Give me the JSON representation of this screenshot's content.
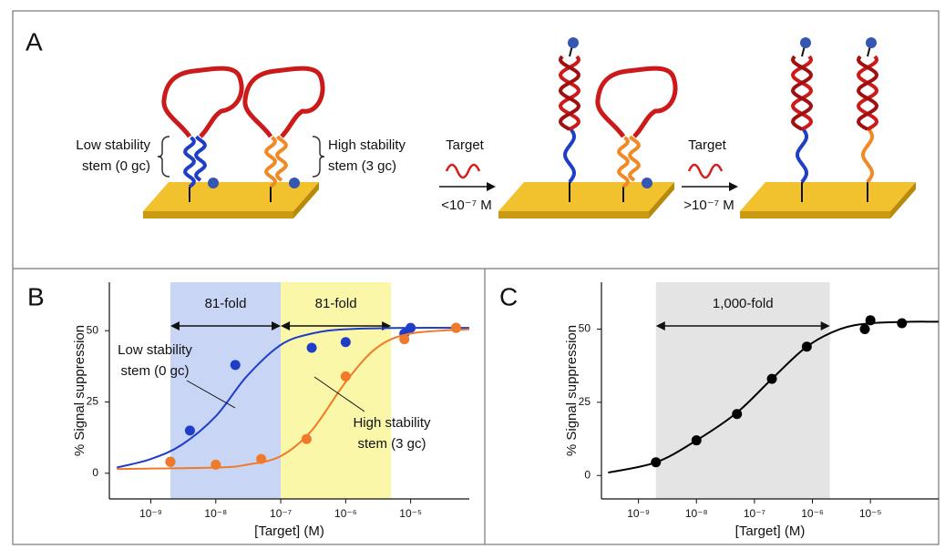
{
  "figure": {
    "panel_a": {
      "label": "A",
      "left_stem_label": [
        "Low stability",
        "stem (0 gc)"
      ],
      "right_stem_label": [
        "High stability",
        "stem (3 gc)"
      ],
      "step1": {
        "label": "Target",
        "condition": "<10⁻⁷ M"
      },
      "step2": {
        "label": "Target",
        "condition": ">10⁻⁷ M"
      }
    }
  },
  "chart_data": [
    {
      "type": "scatter",
      "panel_label": "B",
      "x_label": "[Target] (M)",
      "y_label": "% Signal suppression",
      "log_x": true,
      "xlim": [
        2.3e-10,
        8e-05
      ],
      "ylim": [
        -9,
        67
      ],
      "xticks": [
        {
          "value": 1e-09,
          "label": "10⁻⁹"
        },
        {
          "value": 1e-08,
          "label": "10⁻⁸"
        },
        {
          "value": 1e-07,
          "label": "10⁻⁷"
        },
        {
          "value": 1e-06,
          "label": "10⁻⁶"
        },
        {
          "value": 1e-05,
          "label": "10⁻⁵"
        }
      ],
      "yticks": [
        0,
        25,
        50
      ],
      "regions": [
        {
          "x_range": [
            2e-09,
            1e-07
          ],
          "color": "#c9d5f5",
          "label": "81-fold"
        },
        {
          "x_range": [
            1e-07,
            5e-06
          ],
          "color": "#fbf7a9",
          "label": "81-fold"
        }
      ],
      "series": [
        {
          "color": "#1e3ec8",
          "x": [
            2e-09,
            4e-09,
            2e-08,
            3e-07,
            1e-06,
            8e-06,
            1e-05,
            5e-05
          ],
          "values": [
            4,
            15,
            38,
            44,
            46,
            49,
            51,
            51
          ],
          "fit_x": [
            3e-10,
            1e-09,
            3e-09,
            1e-08,
            3e-08,
            1e-07,
            3e-07,
            1e-06,
            1e-05,
            8e-05
          ],
          "fit_values": [
            2,
            5,
            10,
            20,
            34,
            45,
            49,
            50.5,
            51,
            51
          ],
          "annotation": [
            "Low stability",
            "stem (0 gc)"
          ]
        },
        {
          "color": "#f07a2a",
          "x": [
            2e-09,
            1e-08,
            5e-08,
            2.5e-07,
            1e-06,
            8e-06,
            5e-05
          ],
          "values": [
            4,
            3,
            5,
            12,
            34,
            47,
            51
          ],
          "fit_x": [
            3e-10,
            1e-08,
            3e-08,
            1e-07,
            3e-07,
            1e-06,
            3e-06,
            1e-05,
            8e-05
          ],
          "fit_values": [
            1.5,
            2,
            3,
            6,
            15,
            32,
            44,
            49,
            50.5
          ],
          "annotation": [
            "High stability",
            "stem (3 gc)"
          ]
        }
      ]
    },
    {
      "type": "scatter",
      "panel_label": "C",
      "x_label": "[Target] (M)",
      "y_label": "% Signal suppression",
      "log_x": true,
      "xlim": [
        2.3e-10,
        0.00015
      ],
      "ylim": [
        -8,
        66
      ],
      "xticks": [
        {
          "value": 1e-09,
          "label": "10⁻⁹"
        },
        {
          "value": 1e-08,
          "label": "10⁻⁸"
        },
        {
          "value": 1e-07,
          "label": "10⁻⁷"
        },
        {
          "value": 1e-06,
          "label": "10⁻⁶"
        },
        {
          "value": 1e-05,
          "label": "10⁻⁵"
        }
      ],
      "yticks": [
        0,
        25,
        50
      ],
      "regions": [
        {
          "x_range": [
            2e-09,
            2e-06
          ],
          "color": "#e4e4e4",
          "label": "1,000-fold"
        }
      ],
      "series": [
        {
          "color": "#000000",
          "x": [
            2e-09,
            1e-08,
            5e-08,
            2e-07,
            8e-07,
            8e-06,
            1e-05,
            3.5e-05
          ],
          "values": [
            4.5,
            12,
            21,
            33,
            44,
            50,
            53,
            52
          ],
          "fit_x": [
            3e-10,
            2e-09,
            1e-08,
            5e-08,
            2e-07,
            8e-07,
            3e-06,
            1e-05,
            5e-05,
            0.00015
          ],
          "fit_values": [
            1,
            4.5,
            12,
            21.5,
            33,
            44,
            50,
            52,
            52.5,
            52.5
          ]
        }
      ]
    }
  ]
}
